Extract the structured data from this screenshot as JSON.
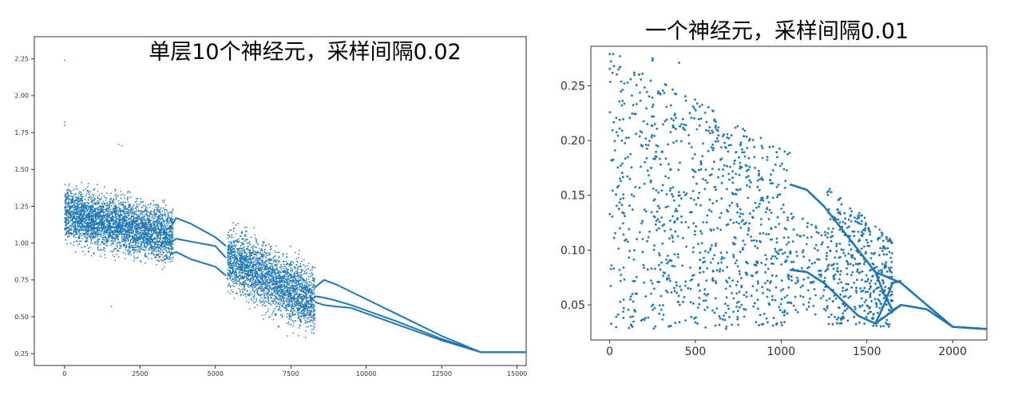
{
  "charts": [
    {
      "title": "单层10个神经元，采样间隔0.02",
      "xticks": [
        0,
        2500,
        5000,
        7500,
        10000,
        12500,
        15000
      ],
      "yticks": [
        "0.25",
        "0.50",
        "0.75",
        "1.00",
        "1.25",
        "1.50",
        "1.75",
        "2.00",
        "2.25"
      ]
    },
    {
      "title": "一个神经元，采样间隔0.01",
      "xticks": [
        0,
        500,
        1000,
        1500,
        2000
      ],
      "yticks": [
        "0.05",
        "0.10",
        "0.15",
        "0.20",
        "0.25"
      ]
    }
  ],
  "chart_data": [
    {
      "type": "scatter",
      "title": "单层10个神经元，采样间隔0.02",
      "xlabel": "",
      "ylabel": "",
      "xlim": [
        -1000,
        15300
      ],
      "ylim": [
        0.17,
        2.4
      ],
      "grid": false,
      "color": "#1f77b4",
      "outliers": [
        [
          0,
          2.24
        ],
        [
          0,
          1.82
        ],
        [
          0,
          1.8
        ],
        [
          1550,
          0.57
        ],
        [
          1800,
          1.67
        ],
        [
          1900,
          1.66
        ]
      ],
      "scatter_clusters": [
        {
          "x_range": [
            0,
            3600
          ],
          "y_center_start": 1.2,
          "y_center_end": 1.05,
          "y_spread": 0.17,
          "count": 3800
        },
        {
          "x_range": [
            5400,
            8300
          ],
          "y_center_start": 0.9,
          "y_center_end": 0.6,
          "y_spread": 0.2,
          "count": 2800
        }
      ],
      "branches": [
        {
          "x": [
            3500,
            3700,
            4200,
            5000,
            5350
          ],
          "y": [
            1.1,
            1.17,
            1.13,
            1.04,
            0.98
          ]
        },
        {
          "x": [
            3500,
            3700,
            4200,
            5000,
            5350
          ],
          "y": [
            1.0,
            1.03,
            1.01,
            0.98,
            0.9
          ]
        },
        {
          "x": [
            3500,
            3700,
            4200,
            5000,
            5350
          ],
          "y": [
            0.92,
            0.94,
            0.89,
            0.84,
            0.78
          ]
        },
        {
          "x": [
            8300,
            8600,
            9000,
            9500
          ],
          "y": [
            0.7,
            0.75,
            0.72,
            0.67
          ]
        },
        {
          "x": [
            8300,
            8600,
            9000,
            9500
          ],
          "y": [
            0.64,
            0.63,
            0.61,
            0.58
          ]
        },
        {
          "x": [
            8300,
            8600,
            9000,
            9500
          ],
          "y": [
            0.6,
            0.58,
            0.57,
            0.56
          ]
        },
        {
          "x": [
            9500,
            11000,
            12500,
            13800,
            15300
          ],
          "y": [
            0.67,
            0.52,
            0.37,
            0.26,
            0.26
          ]
        },
        {
          "x": [
            9500,
            11000,
            12500,
            13800,
            15300
          ],
          "y": [
            0.58,
            0.47,
            0.35,
            0.26,
            0.26
          ]
        },
        {
          "x": [
            9500,
            11000,
            12500,
            13800,
            15300
          ],
          "y": [
            0.56,
            0.45,
            0.34,
            0.26,
            0.26
          ]
        }
      ]
    },
    {
      "type": "scatter",
      "title": "一个神经元，采样间隔0.01",
      "xlabel": "",
      "ylabel": "",
      "xlim": [
        -110,
        2200
      ],
      "ylim": [
        0.018,
        0.286
      ],
      "grid": false,
      "color": "#1f77b4",
      "outliers": [
        [
          0,
          0.279
        ],
        [
          20,
          0.279
        ],
        [
          60,
          0.277
        ],
        [
          250,
          0.275
        ],
        [
          250,
          0.273
        ],
        [
          405,
          0.271
        ],
        [
          120,
          0.055
        ]
      ],
      "scatter_clusters": [
        {
          "x_range": [
            0,
            1050
          ],
          "y_top_start": 0.28,
          "y_top_end": 0.19,
          "y_bottom": 0.028,
          "count": 950
        },
        {
          "x_range": [
            1050,
            1250
          ],
          "y_top_start": 0.15,
          "y_top_end": 0.12,
          "y_bottom": 0.04,
          "count": 90
        },
        {
          "x_range": [
            1250,
            1650
          ],
          "y_top_start": 0.16,
          "y_top_end": 0.11,
          "y_bottom": 0.03,
          "count": 420
        }
      ],
      "branches": [
        {
          "x": [
            1050,
            1150,
            1250,
            1350,
            1450,
            1550,
            1700,
            1850,
            2000,
            2200
          ],
          "y": [
            0.16,
            0.155,
            0.14,
            0.12,
            0.1,
            0.08,
            0.07,
            0.05,
            0.03,
            0.028
          ]
        },
        {
          "x": [
            1050,
            1150,
            1250,
            1350,
            1450,
            1550,
            1700,
            1850,
            2000,
            2200
          ],
          "y": [
            0.082,
            0.08,
            0.07,
            0.055,
            0.04,
            0.033,
            0.05,
            0.046,
            0.03,
            0.028
          ]
        },
        {
          "x": [
            1550,
            1600,
            1650,
            1700
          ],
          "y": [
            0.08,
            0.06,
            0.045,
            0.05
          ]
        },
        {
          "x": [
            1550,
            1600,
            1650,
            1700
          ],
          "y": [
            0.033,
            0.05,
            0.07,
            0.072
          ]
        }
      ]
    }
  ]
}
